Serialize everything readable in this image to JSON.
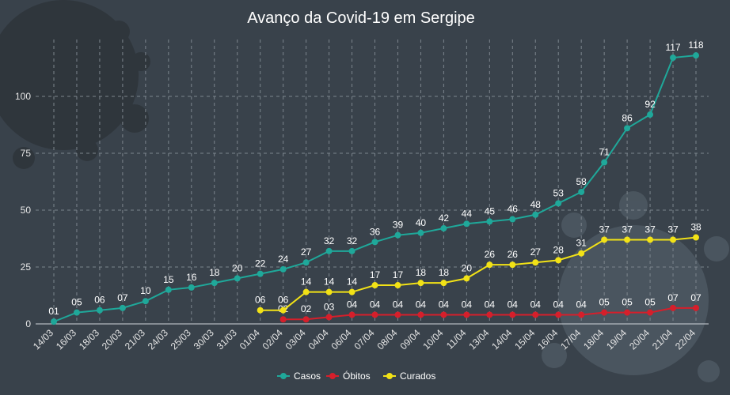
{
  "chart_data": {
    "type": "line",
    "title": "Avanço da Covid-19 em Sergipe",
    "xlabel": "",
    "ylabel": "",
    "ylim": [
      0,
      125
    ],
    "yticks": [
      0,
      25,
      50,
      75,
      100
    ],
    "grid": true,
    "legend_position": "bottom",
    "categories": [
      "14/03",
      "16/03",
      "18/03",
      "20/03",
      "21/03",
      "24/03",
      "25/03",
      "30/03",
      "31/03",
      "01/04",
      "02/04",
      "03/04",
      "04/04",
      "06/04",
      "07/04",
      "08/04",
      "09/04",
      "10/04",
      "11/04",
      "13/04",
      "14/04",
      "15/04",
      "16/04",
      "17/04",
      "18/04",
      "19/04",
      "20/04",
      "21/04",
      "22/04"
    ],
    "series": [
      {
        "name": "Casos",
        "color": "#1fa89a",
        "values": [
          1,
          5,
          6,
          7,
          10,
          15,
          16,
          18,
          20,
          22,
          24,
          27,
          32,
          32,
          36,
          39,
          40,
          42,
          44,
          45,
          46,
          48,
          53,
          58,
          71,
          86,
          92,
          117,
          118
        ],
        "labels": [
          "01",
          "05",
          "06",
          "07",
          "10",
          "15",
          "16",
          "18",
          "20",
          "22",
          "24",
          "27",
          "32",
          "32",
          "36",
          "39",
          "40",
          "42",
          "44",
          "45",
          "46",
          "48",
          "53",
          "58",
          "71",
          "86",
          "92",
          "117",
          "118"
        ]
      },
      {
        "name": "Óbitos",
        "color": "#d61f2b",
        "values": [
          null,
          null,
          null,
          null,
          null,
          null,
          null,
          null,
          null,
          null,
          2,
          2,
          3,
          4,
          4,
          4,
          4,
          4,
          4,
          4,
          4,
          4,
          4,
          4,
          5,
          5,
          5,
          7,
          7
        ],
        "labels": [
          null,
          null,
          null,
          null,
          null,
          null,
          null,
          null,
          null,
          null,
          "02",
          "02",
          "03",
          "04",
          "04",
          "04",
          "04",
          "04",
          "04",
          "04",
          "04",
          "04",
          "04",
          "04",
          "05",
          "05",
          "05",
          "07",
          "07"
        ]
      },
      {
        "name": "Curados",
        "color": "#f2e216",
        "values": [
          null,
          null,
          null,
          null,
          null,
          null,
          null,
          null,
          null,
          6,
          6,
          14,
          14,
          14,
          17,
          17,
          18,
          18,
          20,
          26,
          26,
          27,
          28,
          31,
          37,
          37,
          37,
          37,
          38
        ],
        "labels": [
          null,
          null,
          null,
          null,
          null,
          null,
          null,
          null,
          null,
          "06",
          "06",
          "14",
          "14",
          "14",
          "17",
          "17",
          "18",
          "18",
          "20",
          "26",
          "26",
          "27",
          "28",
          "31",
          "37",
          "37",
          "37",
          "37",
          "38"
        ]
      }
    ]
  }
}
